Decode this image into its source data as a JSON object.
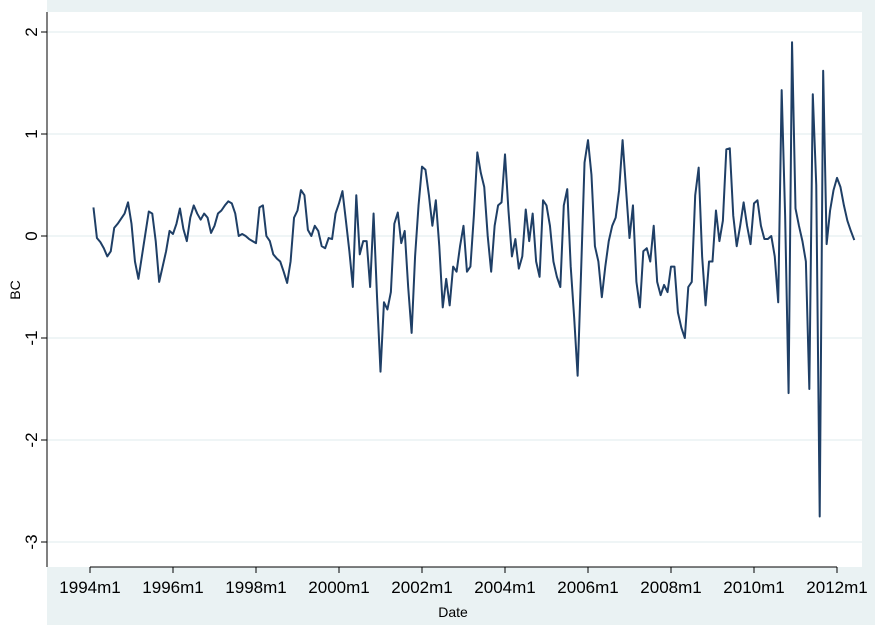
{
  "chart_data": {
    "type": "line",
    "title": "",
    "xlabel": "Date",
    "ylabel": "BC",
    "xlim": [
      "1994m1",
      "2012m6"
    ],
    "ylim": [
      -3.2,
      2.1
    ],
    "y_ticks": [
      2,
      1,
      0,
      -1,
      -2,
      -3
    ],
    "y_tick_labels": [
      "2",
      "1",
      "0",
      "-1",
      "-2",
      "-3"
    ],
    "x_ticks": [
      "1994m1",
      "1996m1",
      "1998m1",
      "2000m1",
      "2002m1",
      "2004m1",
      "2006m1",
      "2008m1",
      "2010m1",
      "2012m1"
    ],
    "grid": true,
    "colors": {
      "line": "#1f3f66",
      "plot_background": "#ffffff",
      "outer_background": "#eaf2f3",
      "grid": "#eaf2f3"
    },
    "series": [
      {
        "x_start": "1994m2",
        "frequency": "monthly",
        "values": [
          0.28,
          -0.02,
          -0.06,
          -0.12,
          -0.2,
          -0.15,
          0.08,
          0.12,
          0.17,
          0.22,
          0.33,
          0.12,
          -0.25,
          -0.42,
          -0.2,
          0.02,
          0.24,
          0.22,
          -0.05,
          -0.45,
          -0.3,
          -0.15,
          0.05,
          0.02,
          0.12,
          0.27,
          0.07,
          -0.05,
          0.18,
          0.3,
          0.22,
          0.16,
          0.22,
          0.18,
          0.03,
          0.1,
          0.22,
          0.25,
          0.3,
          0.34,
          0.32,
          0.22,
          0.0,
          0.02,
          0.0,
          -0.03,
          -0.05,
          -0.07,
          0.28,
          0.3,
          0.0,
          -0.05,
          -0.18,
          -0.22,
          -0.25,
          -0.35,
          -0.46,
          -0.25,
          0.18,
          0.25,
          0.45,
          0.4,
          0.06,
          0.0,
          0.1,
          0.05,
          -0.1,
          -0.12,
          -0.02,
          -0.03,
          0.22,
          0.32,
          0.44,
          0.15,
          -0.15,
          -0.5,
          0.4,
          -0.18,
          -0.05,
          -0.05,
          -0.5,
          0.22,
          -0.6,
          -1.33,
          -0.65,
          -0.72,
          -0.55,
          0.12,
          0.23,
          -0.07,
          0.05,
          -0.5,
          -0.95,
          -0.2,
          0.3,
          0.68,
          0.65,
          0.4,
          0.1,
          0.35,
          -0.1,
          -0.7,
          -0.42,
          -0.68,
          -0.3,
          -0.35,
          -0.1,
          0.1,
          -0.35,
          -0.3,
          0.2,
          0.82,
          0.62,
          0.48,
          0.0,
          -0.35,
          0.1,
          0.3,
          0.33,
          0.8,
          0.25,
          -0.2,
          -0.03,
          -0.32,
          -0.2,
          0.26,
          -0.05,
          0.22,
          -0.25,
          -0.4,
          0.35,
          0.3,
          0.1,
          -0.25,
          -0.4,
          -0.5,
          0.3,
          0.46,
          -0.3,
          -0.8,
          -1.37,
          -0.35,
          0.72,
          0.94,
          0.6,
          -0.1,
          -0.25,
          -0.6,
          -0.3,
          -0.05,
          0.1,
          0.18,
          0.45,
          0.94,
          0.46,
          -0.02,
          0.3,
          -0.45,
          -0.7,
          -0.15,
          -0.12,
          -0.25,
          0.1,
          -0.45,
          -0.58,
          -0.48,
          -0.55,
          -0.3,
          -0.3,
          -0.75,
          -0.9,
          -1.0,
          -0.5,
          -0.45,
          0.4,
          0.67,
          -0.2,
          -0.68,
          -0.25,
          -0.25,
          0.25,
          -0.05,
          0.15,
          0.85,
          0.86,
          0.2,
          -0.1,
          0.1,
          0.33,
          0.1,
          -0.08,
          0.32,
          0.35,
          0.1,
          -0.03,
          -0.03,
          0.0,
          -0.2,
          -0.65,
          1.43,
          0.2,
          -1.54,
          1.9,
          0.27,
          0.1,
          -0.05,
          -0.25,
          -1.5,
          1.39,
          0.5,
          -2.75,
          1.62,
          -0.08,
          0.25,
          0.45,
          0.57,
          0.48,
          0.3,
          0.15,
          0.05,
          -0.04
        ]
      }
    ]
  }
}
